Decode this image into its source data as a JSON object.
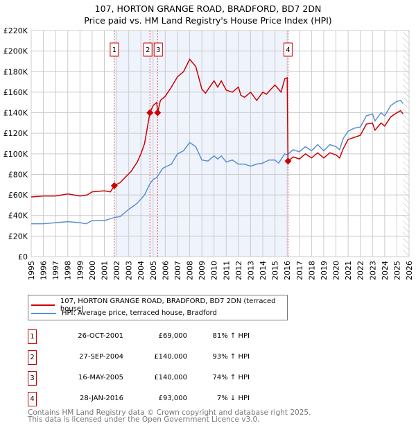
{
  "chart_data": {
    "type": "line",
    "title": "107, HORTON GRANGE ROAD, BRADFORD, BD7 2DN",
    "subtitle": "Price paid vs. HM Land Registry's House Price Index (HPI)",
    "xlim": [
      1995,
      2026
    ],
    "ylim": [
      0,
      220000
    ],
    "x_ticks": [
      "1995",
      "1996",
      "1997",
      "1998",
      "1999",
      "2000",
      "2001",
      "2002",
      "2003",
      "2004",
      "2005",
      "2006",
      "2007",
      "2008",
      "2009",
      "2010",
      "2011",
      "2012",
      "2013",
      "2014",
      "2015",
      "2016",
      "2017",
      "2018",
      "2019",
      "2020",
      "2021",
      "2022",
      "2023",
      "2024",
      "2025",
      "2026"
    ],
    "y_ticks": [
      "£0",
      "£20K",
      "£40K",
      "£60K",
      "£80K",
      "£100K",
      "£120K",
      "£140K",
      "£160K",
      "£180K",
      "£200K",
      "£220K"
    ],
    "grid": true,
    "shaded_range": [
      2001.82,
      2016.07
    ],
    "forecast_hatch_from": 2025.5,
    "series": [
      {
        "name": "107, HORTON GRANGE ROAD, BRADFORD, BD7 2DN (terraced house)",
        "color": "#cc0000",
        "x": [
          1995,
          1996,
          1997,
          1998,
          1999,
          1999.6,
          2000,
          2001,
          2001.5,
          2001.82,
          2002.3,
          2002.7,
          2003.2,
          2003.7,
          2004,
          2004.3,
          2004.74,
          2005,
          2005.3,
          2005.37,
          2005.6,
          2006,
          2006.5,
          2007,
          2007.5,
          2008,
          2008.5,
          2009,
          2009.3,
          2009.7,
          2010,
          2010.3,
          2010.6,
          2011,
          2011.5,
          2012,
          2012.2,
          2012.5,
          2013,
          2013.5,
          2014,
          2014.3,
          2014.6,
          2015,
          2015.5,
          2015.8,
          2016.0,
          2016.07,
          2016.5,
          2017,
          2017.5,
          2018,
          2018.5,
          2019,
          2019.5,
          2020,
          2020.3,
          2020.6,
          2021,
          2021.5,
          2022,
          2022.5,
          2023,
          2023.2,
          2023.7,
          2024,
          2024.5,
          2025,
          2025.3,
          2025.5
        ],
        "y": [
          58,
          59,
          59,
          61,
          59,
          60,
          63,
          64,
          63,
          69,
          72,
          77,
          83,
          92,
          100,
          110,
          140,
          147,
          150,
          140,
          152,
          156,
          165,
          175,
          180,
          192,
          185,
          163,
          159,
          166,
          171,
          165,
          171,
          162,
          160,
          165,
          157,
          155,
          160,
          152,
          160,
          158,
          162,
          167,
          160,
          173,
          174,
          93,
          97,
          95,
          100,
          96,
          101,
          96,
          101,
          99,
          96,
          105,
          114,
          116,
          118,
          129,
          130,
          123,
          130,
          127,
          136,
          140,
          142,
          139
        ]
      },
      {
        "name": "HPI: Average price, terraced house, Bradford",
        "color": "#5b8fd4",
        "x": [
          1995,
          1996,
          1997,
          1998,
          1999,
          1999.5,
          2000,
          2001,
          2001.8,
          2002.3,
          2003,
          2003.7,
          2004.3,
          2004.7,
          2005,
          2005.3,
          2005.8,
          2006.5,
          2007,
          2007.5,
          2008,
          2008.5,
          2009,
          2009.5,
          2010,
          2010.3,
          2010.6,
          2011,
          2011.5,
          2012,
          2012.5,
          2013,
          2013.5,
          2014,
          2014.5,
          2015,
          2015.3,
          2015.8,
          2016,
          2016.5,
          2017,
          2017.5,
          2018,
          2018.5,
          2019,
          2019.5,
          2020,
          2020.3,
          2020.6,
          2021,
          2021.5,
          2022,
          2022.5,
          2023,
          2023.2,
          2023.7,
          2024,
          2024.5,
          2025,
          2025.3,
          2025.5
        ],
        "y": [
          32,
          32,
          33,
          34,
          33,
          32,
          35,
          35,
          38,
          39,
          46,
          52,
          60,
          70,
          75,
          77,
          86,
          90,
          100,
          103,
          111,
          107,
          94,
          93,
          98,
          95,
          98,
          92,
          94,
          90,
          90,
          88,
          90,
          91,
          94,
          94,
          91,
          100,
          99,
          104,
          102,
          107,
          103,
          109,
          103,
          109,
          107,
          104,
          115,
          122,
          125,
          126,
          137,
          139,
          132,
          140,
          137,
          147,
          151,
          152,
          149
        ]
      }
    ],
    "y_unit": "thousands GBP",
    "sales": [
      {
        "id": "1",
        "x": 2001.82,
        "date": "26-OCT-2001",
        "price": "£69,000",
        "price_value": 69,
        "hpi": "81% ↑ HPI"
      },
      {
        "id": "2",
        "x": 2004.74,
        "date": "27-SEP-2004",
        "price": "£140,000",
        "price_value": 140,
        "hpi": "93% ↑ HPI"
      },
      {
        "id": "3",
        "x": 2005.37,
        "date": "16-MAY-2005",
        "price": "£140,000",
        "price_value": 140,
        "hpi": "74% ↑ HPI"
      },
      {
        "id": "4",
        "x": 2016.07,
        "date": "28-JAN-2016",
        "price": "£93,000",
        "price_value": 93,
        "hpi": "7% ↓ HPI"
      }
    ]
  },
  "legend": {
    "property": "107, HORTON GRANGE ROAD, BRADFORD, BD7 2DN (terraced house)",
    "hpi": "HPI: Average price, terraced house, Bradford"
  },
  "footer": {
    "line1": "Contains HM Land Registry data © Crown copyright and database right 2025.",
    "line2": "This data is licensed under the Open Government Licence v3.0."
  }
}
